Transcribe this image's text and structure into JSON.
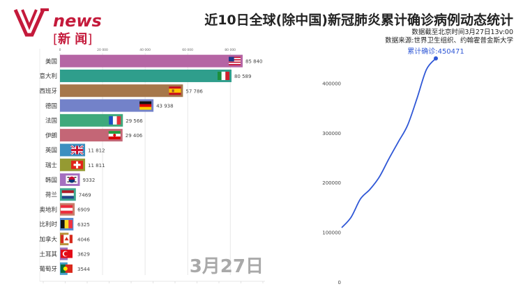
{
  "header": {
    "logo_brand": "news",
    "logo_cn": "新 闻",
    "title": "近10日全球(除中国)新冠肺炎累计确诊病例动态统计",
    "as_of": "数据截至北京时间3月27日13v:00",
    "source": "数据来源:世界卫生组织、约翰霍普金斯大学"
  },
  "colors": {
    "brand_red": "#c41a3b",
    "line_blue": "#2f57d6"
  },
  "chart_data": [
    {
      "type": "bar",
      "orientation": "horizontal",
      "title": "",
      "date_label": "3月27日",
      "x_ticks": [
        0,
        20000,
        40000,
        60000,
        80000
      ],
      "x_tick_labels": [
        "0",
        "20 000",
        "40 000",
        "60 000",
        "80 000"
      ],
      "xlim": [
        0,
        95000
      ],
      "categories": [
        "美国",
        "意大利",
        "西班牙",
        "德国",
        "法国",
        "伊朗",
        "英国",
        "瑞士",
        "韩国",
        "荷兰",
        "奥地利",
        "比利时",
        "加拿大",
        "土耳其",
        "葡萄牙"
      ],
      "values": [
        85840,
        80589,
        57786,
        43938,
        29566,
        29406,
        11812,
        11811,
        9332,
        7469,
        6909,
        6325,
        4046,
        3629,
        3544
      ],
      "value_labels": [
        "85 840",
        "80 589",
        "57 786",
        "43 938",
        "29 566",
        "29 406",
        "11 812",
        "11 811",
        "9332",
        "7469",
        "6909",
        "6325",
        "4046",
        "3629",
        "3544"
      ],
      "bar_colors": [
        "#b565a4",
        "#2f9e8c",
        "#a6774a",
        "#7382c9",
        "#3ea97c",
        "#c46676",
        "#3d8fc0",
        "#959a32",
        "#a570c0",
        "#3ea790",
        "#c77f6b",
        "#568bd0",
        "#b99237",
        "#9c6fb8",
        "#479ec9"
      ],
      "flags": [
        "flag-us",
        "flag-it",
        "flag-es",
        "flag-de",
        "flag-fr",
        "flag-ir",
        "flag-gb",
        "flag-ch",
        "flag-kr",
        "flag-nl",
        "flag-at",
        "flag-be",
        "flag-ca",
        "flag-tr",
        "flag-pt"
      ]
    },
    {
      "type": "line",
      "title": "",
      "series_label": "累计确诊:450471",
      "y_ticks": [
        0,
        100000,
        200000,
        300000,
        400000
      ],
      "ylim": [
        0,
        455000
      ],
      "x": [
        0,
        1,
        2,
        3,
        4,
        5,
        6,
        7,
        8,
        9,
        10
      ],
      "values": [
        110000,
        131000,
        168000,
        187000,
        212000,
        248000,
        282000,
        316000,
        370000,
        428000,
        450471
      ]
    }
  ]
}
